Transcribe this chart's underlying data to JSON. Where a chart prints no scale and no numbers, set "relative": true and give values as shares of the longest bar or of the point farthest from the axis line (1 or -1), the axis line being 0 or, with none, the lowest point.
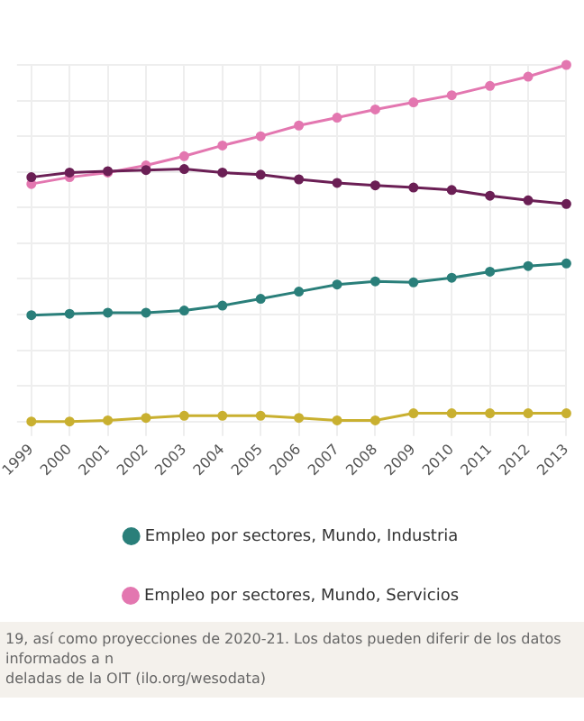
{
  "chart_data": {
    "type": "line",
    "relative": true,
    "categories": [
      "1999",
      "2000",
      "2001",
      "2002",
      "2003",
      "2004",
      "2005",
      "2006",
      "2007",
      "2008",
      "2009",
      "2010",
      "2011",
      "2012",
      "2013"
    ],
    "series": [
      {
        "color": "#6b1f55",
        "values": [
          0.685,
          0.698,
          0.702,
          0.705,
          0.708,
          0.698,
          0.692,
          0.679,
          0.669,
          0.662,
          0.656,
          0.649,
          0.633,
          0.62,
          0.61
        ]
      },
      {
        "name": "Empleo por sectores, Mundo, Industria",
        "color": "#2a7f7a",
        "values": [
          0.298,
          0.302,
          0.305,
          0.305,
          0.311,
          0.325,
          0.344,
          0.364,
          0.384,
          0.393,
          0.39,
          0.403,
          0.42,
          0.436,
          0.443
        ]
      },
      {
        "name": "Empleo por sectores, Mundo, Servicios",
        "color": "#e377b0",
        "values": [
          0.666,
          0.685,
          0.698,
          0.718,
          0.744,
          0.774,
          0.8,
          0.83,
          0.852,
          0.875,
          0.895,
          0.915,
          0.941,
          0.967,
          1
        ]
      },
      {
        "color": "#c9b030",
        "values": [
          0,
          0,
          0.003,
          0.01,
          0.016,
          0.016,
          0.016,
          0.01,
          0.003,
          0.003,
          0.023,
          0.023,
          0.023,
          0.023,
          0.023
        ]
      }
    ],
    "grid": true,
    "legend": "bottom",
    "marker": "circle",
    "line_style": "solid",
    "annotations": [
      "19, así como proyecciones de 2020-21. Los datos pueden diferir de los datos informados a n",
      "deladas de la OIT (ilo.org/wesodata)"
    ]
  }
}
